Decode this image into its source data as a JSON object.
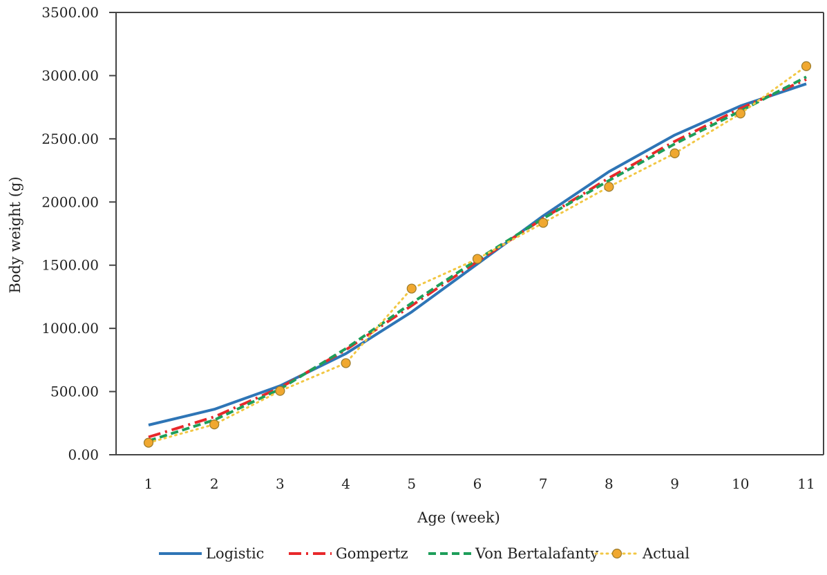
{
  "chart_data": {
    "type": "line",
    "title": "",
    "xlabel": "Age (week)",
    "ylabel": "Body weight (g)",
    "x": [
      1,
      2,
      3,
      4,
      5,
      6,
      7,
      8,
      9,
      10,
      11
    ],
    "x_tick_labels": [
      "1",
      "2",
      "3",
      "4",
      "5",
      "6",
      "7",
      "8",
      "9",
      "10",
      "11"
    ],
    "ylim": [
      0,
      3500
    ],
    "y_ticks": [
      0,
      500,
      1000,
      1500,
      2000,
      2500,
      3000,
      3500
    ],
    "y_tick_labels": [
      "0.00",
      "500.00",
      "1000.00",
      "1500.00",
      "2000.00",
      "2500.00",
      "3000.00",
      "3500.00"
    ],
    "grid": false,
    "legend_position": "bottom",
    "series": [
      {
        "name": "Logistic",
        "color": "#2e75b6",
        "style": "solid",
        "marker": false,
        "values": [
          235,
          360,
          545,
          800,
          1130,
          1510,
          1890,
          2240,
          2530,
          2760,
          2935
        ]
      },
      {
        "name": "Gompertz",
        "color": "#e8282b",
        "style": "dashdot",
        "marker": false,
        "values": [
          140,
          300,
          530,
          830,
          1180,
          1530,
          1870,
          2190,
          2480,
          2740,
          2970
        ]
      },
      {
        "name": "Von Bertalafanty",
        "color": "#1e9e5a",
        "style": "dashed",
        "marker": false,
        "values": [
          110,
          275,
          520,
          840,
          1200,
          1545,
          1870,
          2170,
          2460,
          2720,
          2990
        ]
      },
      {
        "name": "Actual",
        "color": "#f2c744",
        "style": "dotted",
        "marker": true,
        "marker_color": "#f0a830",
        "values": [
          95,
          240,
          505,
          725,
          1315,
          1550,
          1835,
          2120,
          2385,
          2700,
          3075
        ]
      }
    ]
  }
}
